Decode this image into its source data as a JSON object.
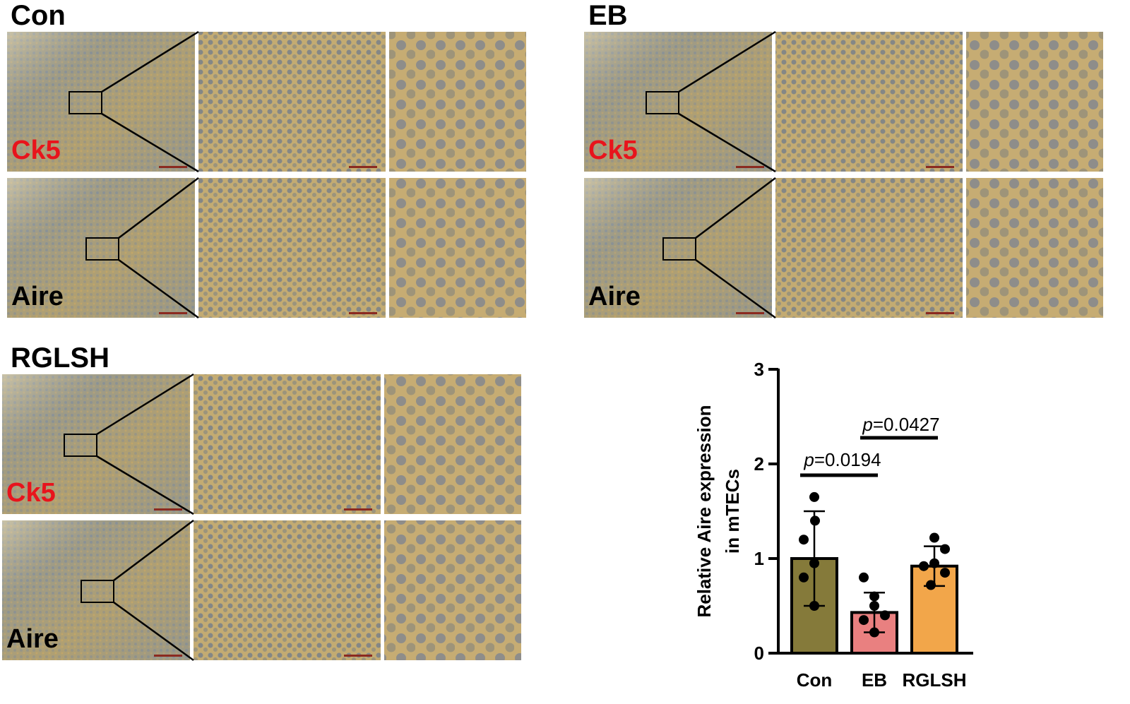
{
  "panels": [
    {
      "title": "Con",
      "rows": [
        "Ck5",
        "Aire"
      ]
    },
    {
      "title": "EB",
      "rows": [
        "Ck5",
        "Aire"
      ]
    },
    {
      "title": "RGLSH",
      "rows": [
        "Ck5",
        "Aire"
      ]
    }
  ],
  "chart_data": {
    "type": "bar",
    "ylabel": [
      "Relative Aire expression",
      "in mTECs"
    ],
    "categories": [
      "Con",
      "EB",
      "RGLSH"
    ],
    "values": [
      1.0,
      0.43,
      0.92
    ],
    "errors": [
      0.5,
      0.21,
      0.21
    ],
    "colors": [
      "#857a3a",
      "#e98080",
      "#f2a64a"
    ],
    "points": [
      [
        1.65,
        1.4,
        1.2,
        0.95,
        0.8,
        0.5
      ],
      [
        0.8,
        0.6,
        0.5,
        0.4,
        0.35,
        0.22
      ],
      [
        1.22,
        1.1,
        0.95,
        0.92,
        0.85,
        0.72
      ]
    ],
    "ylim": [
      0,
      3
    ],
    "yticks": [
      0,
      1,
      2,
      3
    ],
    "annotations": [
      "p=0.0194",
      "p=0.0427"
    ]
  }
}
